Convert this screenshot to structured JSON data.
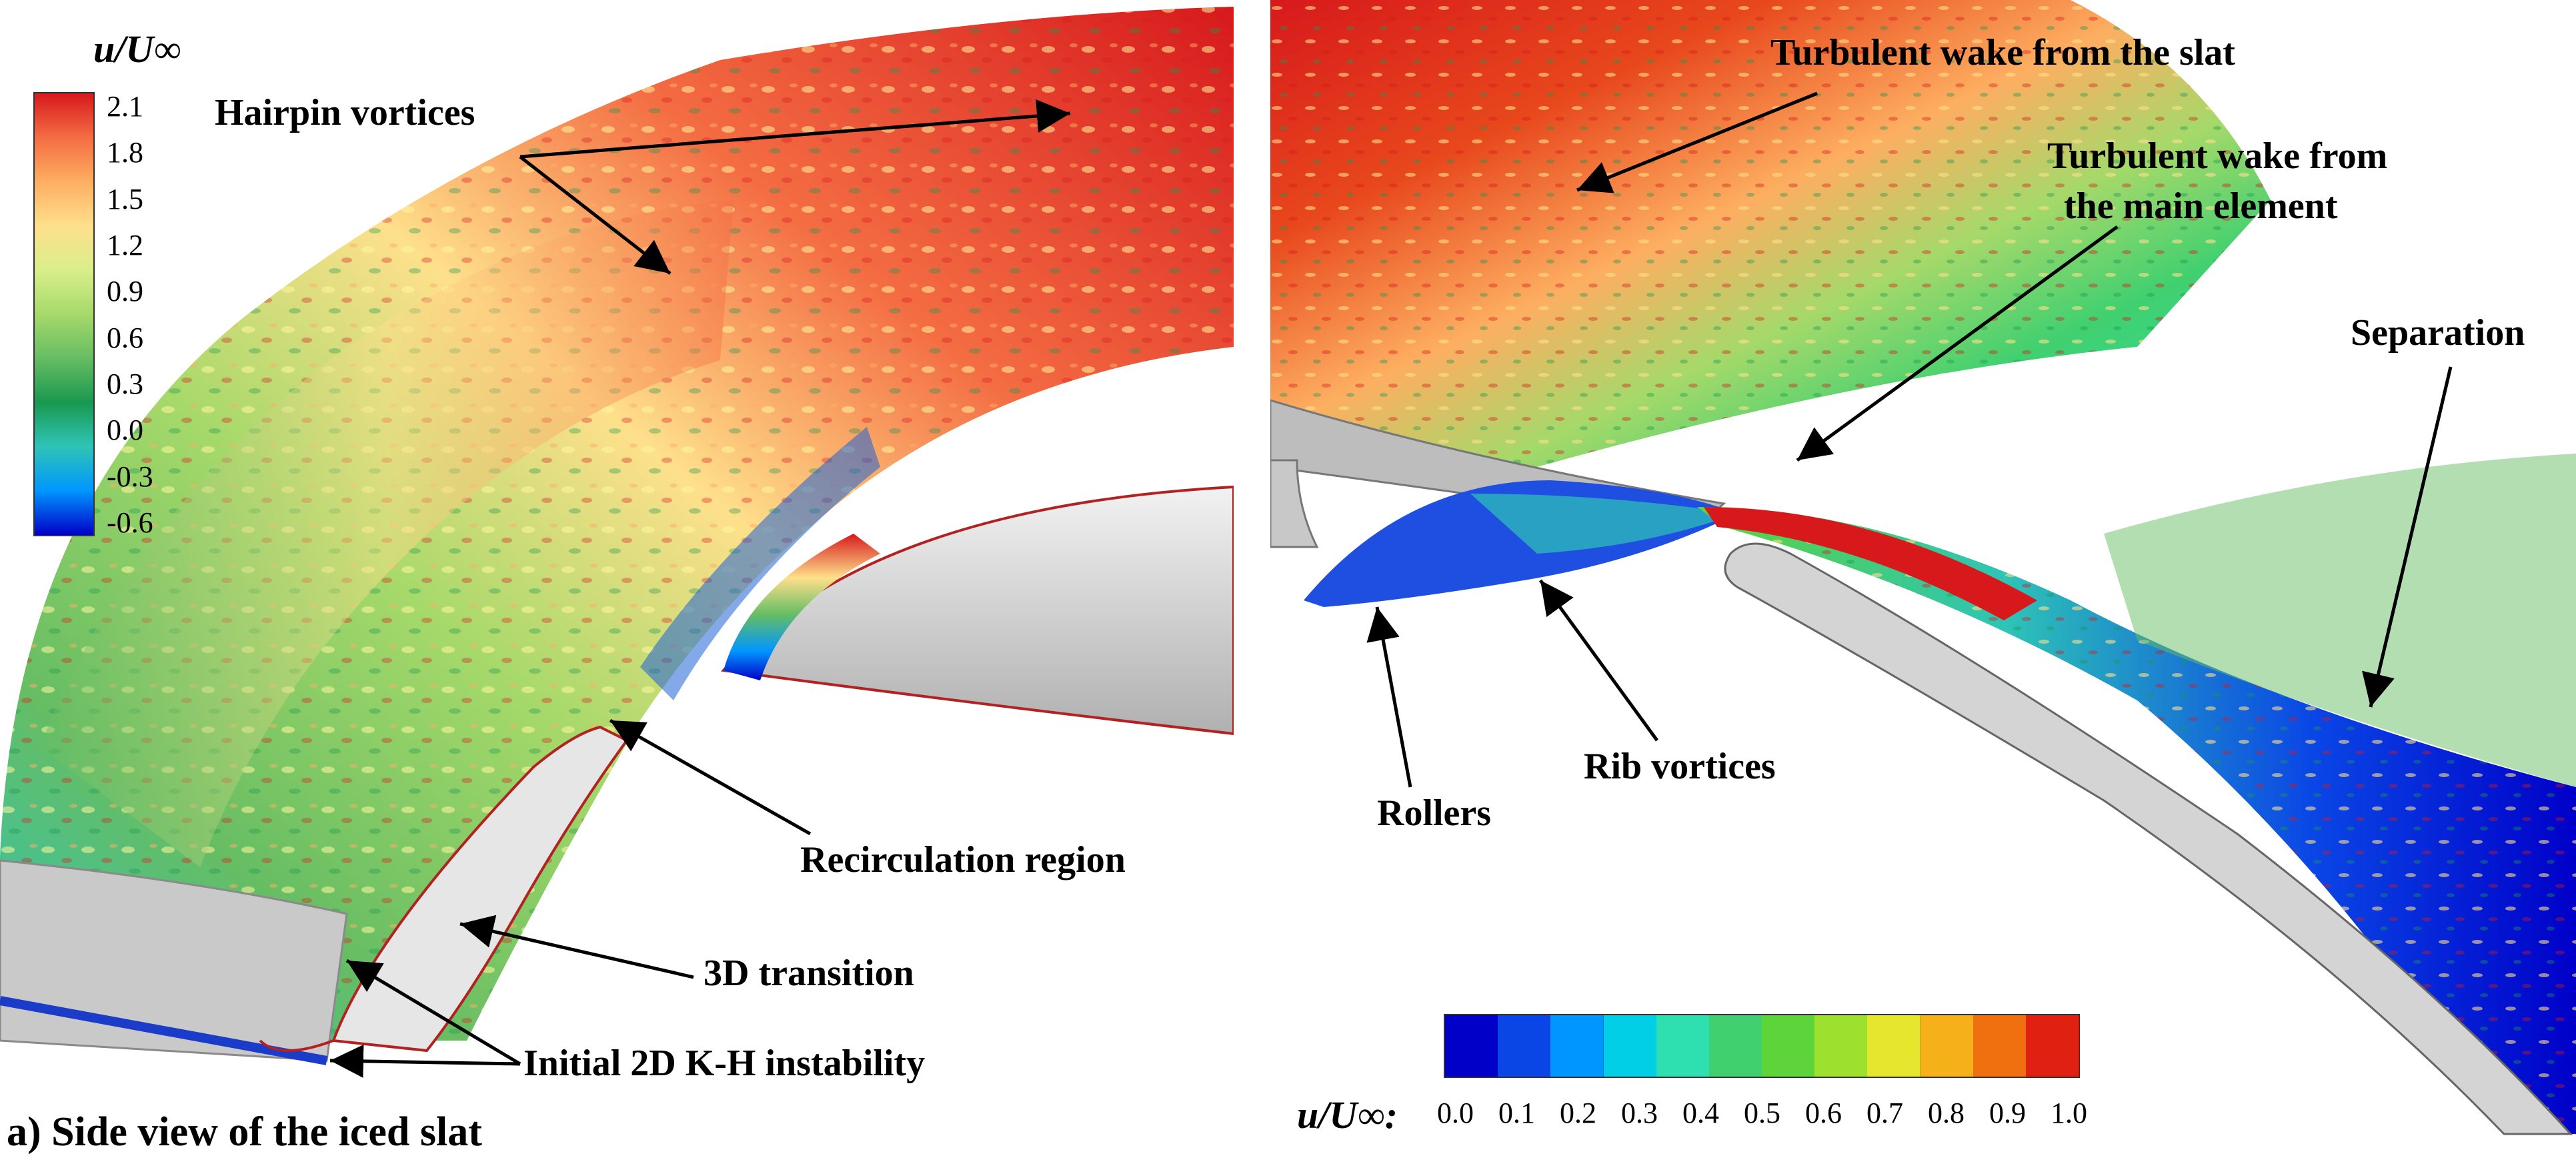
{
  "left_panel": {
    "caption": "a) Side view of the iced slat",
    "colorbar": {
      "title": "u/U∞",
      "ticks": [
        "2.1",
        "1.8",
        "1.5",
        "1.2",
        "0.9",
        "0.6",
        "0.3",
        "0.0",
        "-0.3",
        "-0.6"
      ],
      "colors": [
        "#d7191c",
        "#f46d43",
        "#fdae61",
        "#fee08b",
        "#d9ef8b",
        "#a6d96a",
        "#66bd63",
        "#1a9850",
        "#2ec4b6",
        "#0096ff",
        "#0000c8"
      ]
    },
    "annotations": {
      "hairpin": "Hairpin vortices",
      "recirculation": "Recirculation region",
      "transition": "3D transition",
      "kh": "Initial 2D K-H instability"
    }
  },
  "right_panel": {
    "colorbar": {
      "title": "u/U∞:",
      "ticks": [
        "0.0",
        "0.1",
        "0.2",
        "0.3",
        "0.4",
        "0.5",
        "0.6",
        "0.7",
        "0.8",
        "0.9",
        "1.0"
      ],
      "colors": [
        "#0000c8",
        "#0a46e6",
        "#0096ff",
        "#00cfe6",
        "#2ee0b0",
        "#40d070",
        "#5cd43a",
        "#9ee02e",
        "#e6e62e",
        "#f5b01a",
        "#f07010",
        "#e02010"
      ]
    },
    "annotations": {
      "wake_slat": "Turbulent wake from the slat",
      "wake_main_1": "Turbulent wake from",
      "wake_main_2": "the main element",
      "separation": "Separation",
      "rib": "Rib vortices",
      "rollers": "Rollers"
    }
  }
}
